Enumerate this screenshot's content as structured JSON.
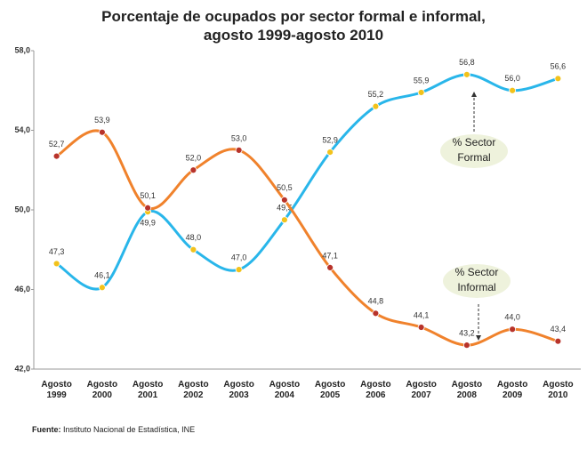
{
  "chart_data": {
    "type": "line",
    "title": "Porcentaje de ocupados por sector formal e informal, agosto 1999-agosto 2010",
    "categories": [
      "Agosto 1999",
      "Agosto 2000",
      "Agosto 2001",
      "Agosto 2002",
      "Agosto 2003",
      "Agosto 2004",
      "Agosto 2005",
      "Agosto 2006",
      "Agosto 2007",
      "Agosto 2008",
      "Agosto 2009",
      "Agosto 2010"
    ],
    "series": [
      {
        "name": "% Sector Formal",
        "color": "#29b6ea",
        "marker_color": "#f2c21b",
        "values": [
          47.3,
          46.1,
          49.9,
          48.0,
          47.0,
          49.5,
          52.9,
          55.2,
          55.9,
          56.8,
          56.0,
          56.6
        ],
        "value_labels": [
          "47,3",
          "46,1",
          "49,9",
          "48,0",
          "47,0",
          "49,5",
          "52,9",
          "55,2",
          "55,9",
          "56,8",
          "56,0",
          "56,6"
        ]
      },
      {
        "name": "% Sector Informal",
        "color": "#f0822c",
        "marker_color": "#b8332a",
        "values": [
          52.7,
          53.9,
          50.1,
          52.0,
          53.0,
          50.5,
          47.1,
          44.8,
          44.1,
          43.2,
          44.0,
          43.4
        ],
        "value_labels": [
          "52,7",
          "53,9",
          "50,1",
          "52,0",
          "53,0",
          "50,5",
          "47,1",
          "44,8",
          "44,1",
          "43,2",
          "44,0",
          "43,4"
        ]
      }
    ],
    "ylim": [
      42,
      58
    ],
    "yticks": [
      {
        "value": 42,
        "label": "42,0"
      },
      {
        "value": 46,
        "label": "46,0"
      },
      {
        "value": 50,
        "label": "50,0"
      },
      {
        "value": 54,
        "label": "54,0"
      },
      {
        "value": 58,
        "label": "58,0"
      }
    ],
    "grid": false,
    "source_label": "Fuente:",
    "source": "Instituto Nacional de Estadística, INE"
  }
}
